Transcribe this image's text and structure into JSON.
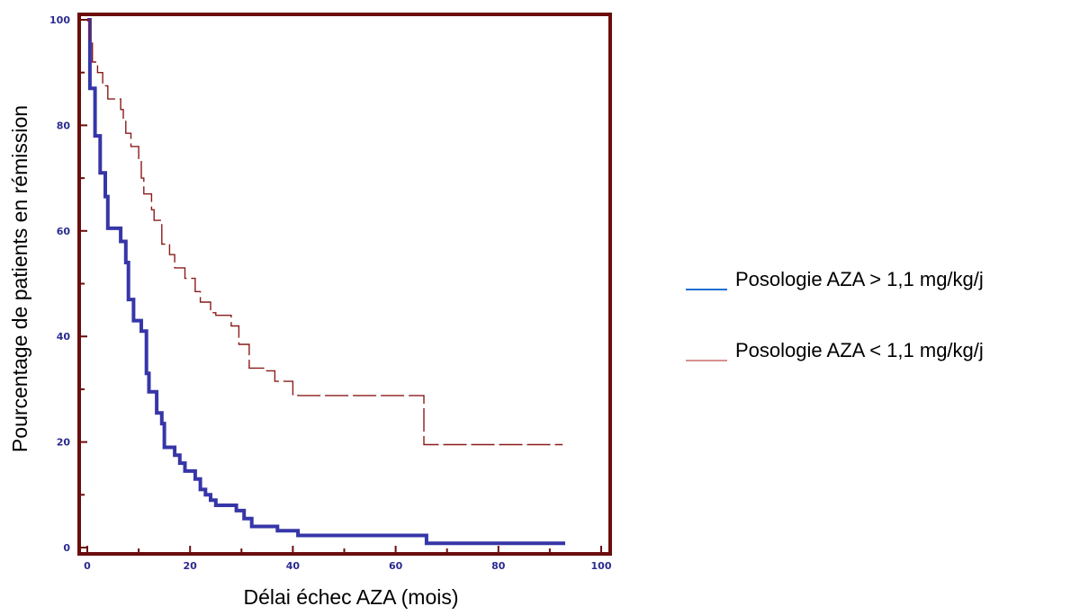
{
  "chart_data": {
    "type": "line",
    "xlabel": "Délai échec AZA (mois)",
    "ylabel": "Pourcentage de patients en rémission",
    "xlim": [
      0,
      100
    ],
    "ylim": [
      0,
      100
    ],
    "x_ticks": [
      0,
      20,
      40,
      60,
      80,
      100
    ],
    "y_ticks": [
      0,
      20,
      40,
      60,
      80,
      100
    ],
    "grid": false,
    "legend_position": "right",
    "frame_color": "#6b0d0d",
    "tick_color": "#2b2b8f",
    "series": [
      {
        "name": "Posologie AZA > 1,1 mg/kg/j",
        "color": "#3636a8",
        "legend_color": "#1f6fd1",
        "style": "solid",
        "step_points": [
          [
            0,
            100
          ],
          [
            0.5,
            87
          ],
          [
            1.5,
            78
          ],
          [
            2.5,
            71
          ],
          [
            3.5,
            66.5
          ],
          [
            4,
            60.5
          ],
          [
            6.5,
            58
          ],
          [
            7.5,
            54
          ],
          [
            8,
            47
          ],
          [
            9,
            43
          ],
          [
            10.5,
            41
          ],
          [
            11.5,
            33
          ],
          [
            12,
            29.5
          ],
          [
            13.5,
            25.5
          ],
          [
            14.5,
            23.5
          ],
          [
            15,
            19
          ],
          [
            17,
            17.5
          ],
          [
            18,
            16
          ],
          [
            19,
            14.5
          ],
          [
            21,
            13
          ],
          [
            22,
            11
          ],
          [
            23,
            10
          ],
          [
            24,
            9
          ],
          [
            25,
            8
          ],
          [
            29,
            7
          ],
          [
            30.5,
            5.5
          ],
          [
            32,
            4
          ],
          [
            37,
            3.2
          ],
          [
            41,
            2.3
          ],
          [
            66,
            2.3
          ],
          [
            66,
            0.8
          ],
          [
            93,
            0.8
          ]
        ]
      },
      {
        "name": "Posologie AZA < 1,1 mg/kg/j",
        "color": "#8b1a1a",
        "legend_color": "#c0504d",
        "style": "dashed",
        "step_points": [
          [
            0,
            100
          ],
          [
            0.5,
            96
          ],
          [
            1,
            92
          ],
          [
            2,
            90
          ],
          [
            3,
            87.5
          ],
          [
            4,
            85
          ],
          [
            6.5,
            83
          ],
          [
            7,
            81
          ],
          [
            7.5,
            78.5
          ],
          [
            8.5,
            76
          ],
          [
            10,
            73.5
          ],
          [
            10.5,
            70
          ],
          [
            11,
            67
          ],
          [
            12.5,
            64
          ],
          [
            13,
            62
          ],
          [
            14.5,
            57.5
          ],
          [
            16,
            55.5
          ],
          [
            17,
            53
          ],
          [
            19,
            51
          ],
          [
            21,
            48.5
          ],
          [
            22,
            46.5
          ],
          [
            24,
            44.5
          ],
          [
            25,
            44
          ],
          [
            28,
            42
          ],
          [
            29.5,
            38.5
          ],
          [
            31.5,
            34
          ],
          [
            34.5,
            33.5
          ],
          [
            36.5,
            31.5
          ],
          [
            40,
            29
          ],
          [
            41,
            28.8
          ],
          [
            65.5,
            28.8
          ],
          [
            65.5,
            19.5
          ],
          [
            92.5,
            19.5
          ]
        ]
      }
    ]
  }
}
